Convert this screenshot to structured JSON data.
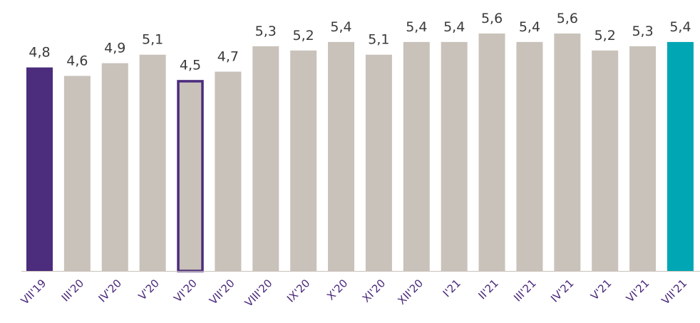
{
  "chart_data": {
    "type": "bar",
    "categories": [
      "VII'19",
      "III'20",
      "IV'20",
      "V'20",
      "VI'20",
      "VII'20",
      "VIII'20",
      "IX'20",
      "X'20",
      "XI'20",
      "XII'20",
      "I'21",
      "II'21",
      "III'21",
      "IV'21",
      "V'21",
      "VI'21",
      "VII'21"
    ],
    "values": [
      4.8,
      4.6,
      4.9,
      5.1,
      4.5,
      4.7,
      5.3,
      5.2,
      5.4,
      5.1,
      5.4,
      5.4,
      5.6,
      5.4,
      5.6,
      5.2,
      5.3,
      5.4
    ],
    "value_labels": [
      "4,8",
      "4,6",
      "4,9",
      "5,1",
      "4,5",
      "4,7",
      "5,3",
      "5,2",
      "5,4",
      "5,1",
      "5,4",
      "5,4",
      "5,6",
      "5,4",
      "5,6",
      "5,2",
      "5,3",
      "5,4"
    ],
    "ylim": [
      0,
      5.6
    ],
    "grid": false,
    "legend": "none",
    "colors": {
      "default": "#c9c2ba",
      "first": "#4b2c7d",
      "last": "#00a6b4",
      "highlight_outline": "#4b2c7d",
      "value_text": "#3a3a3a",
      "tick_text": "#4a2a7a",
      "baseline": "#c9c2ba"
    },
    "highlight": {
      "first_index": 0,
      "outlined_index": 4,
      "last_index": 17
    }
  }
}
